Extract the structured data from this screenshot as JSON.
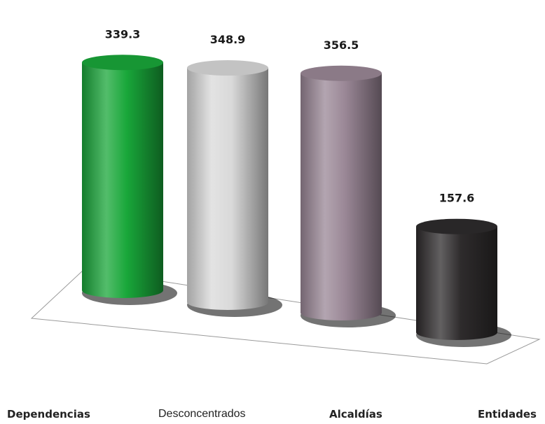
{
  "chart_data": {
    "type": "bar",
    "categories": [
      "Dependencias",
      "Desconcentrados",
      "Alcaldías",
      "Entidades"
    ],
    "values": [
      339.3,
      348.9,
      356.5,
      157.6
    ],
    "value_labels": [
      "339.3",
      "348.9",
      "356.5",
      "157.6"
    ],
    "colors": [
      "#19a73a",
      "#d9d9d9",
      "#9a8796",
      "#2e2b2c"
    ],
    "style": "3d-cylinder"
  }
}
